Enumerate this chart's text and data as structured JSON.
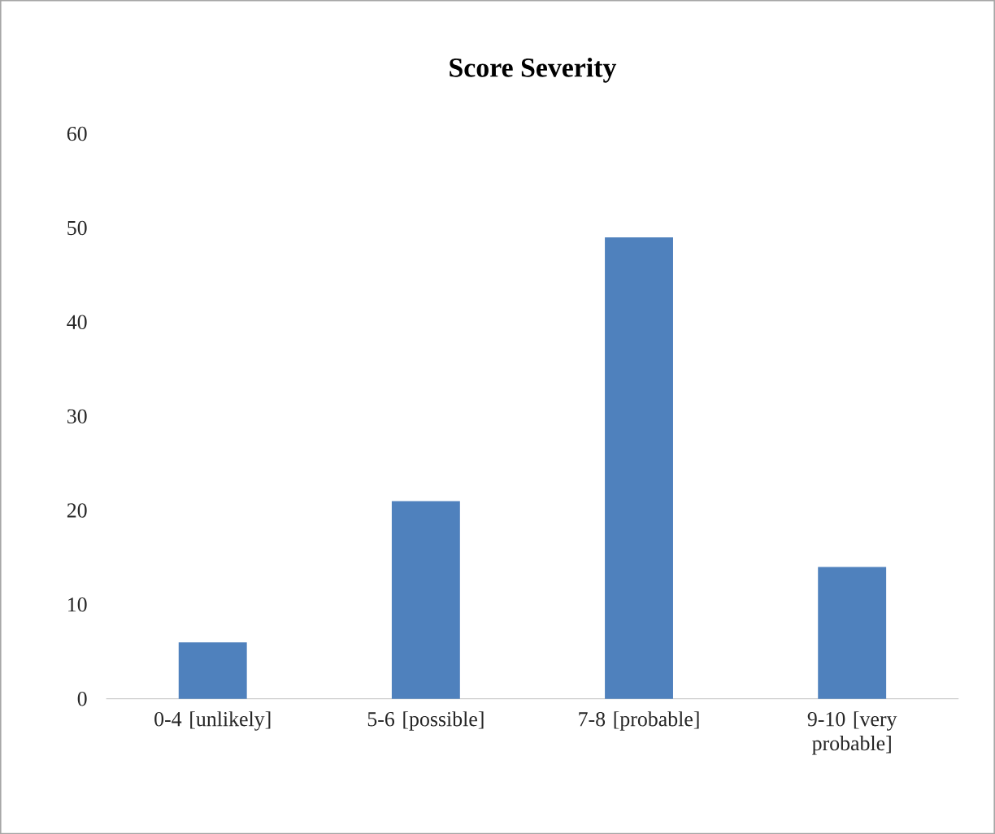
{
  "chart_data": {
    "type": "bar",
    "title": "Score Severity",
    "categories": [
      "0-4 [unlikely]",
      "5-6 [possible]",
      "7-8 [probable]",
      "9-10 [very probable]"
    ],
    "values": [
      6,
      21,
      49,
      14
    ],
    "color": "#4f81bd",
    "ylim": [
      0,
      60
    ],
    "yticks": [
      0,
      10,
      20,
      30,
      40,
      50,
      60
    ]
  }
}
